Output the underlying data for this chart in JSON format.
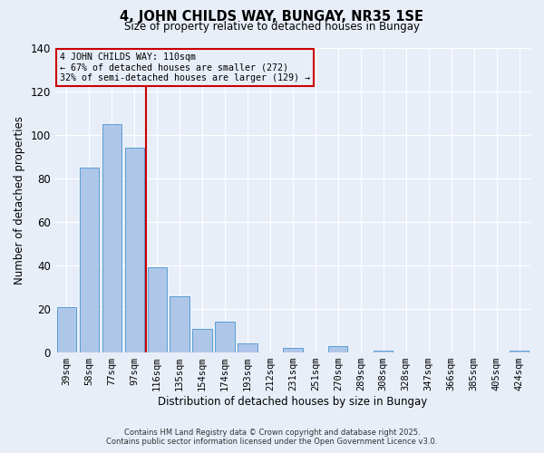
{
  "title": "4, JOHN CHILDS WAY, BUNGAY, NR35 1SE",
  "subtitle": "Size of property relative to detached houses in Bungay",
  "xlabel": "Distribution of detached houses by size in Bungay",
  "ylabel": "Number of detached properties",
  "categories": [
    "39sqm",
    "58sqm",
    "77sqm",
    "97sqm",
    "116sqm",
    "135sqm",
    "154sqm",
    "174sqm",
    "193sqm",
    "212sqm",
    "231sqm",
    "251sqm",
    "270sqm",
    "289sqm",
    "308sqm",
    "328sqm",
    "347sqm",
    "366sqm",
    "385sqm",
    "405sqm",
    "424sqm"
  ],
  "values": [
    21,
    85,
    105,
    94,
    39,
    26,
    11,
    14,
    4,
    0,
    2,
    0,
    3,
    0,
    1,
    0,
    0,
    0,
    0,
    0,
    1
  ],
  "bar_color": "#aec6e8",
  "bar_edge_color": "#5a9fd4",
  "vline_x_pos": 3.5,
  "vline_color": "#cc0000",
  "annotation_line1": "4 JOHN CHILDS WAY: 110sqm",
  "annotation_line2": "← 67% of detached houses are smaller (272)",
  "annotation_line3": "32% of semi-detached houses are larger (129) →",
  "annotation_box_color": "#cc0000",
  "ylim": [
    0,
    140
  ],
  "yticks": [
    0,
    20,
    40,
    60,
    80,
    100,
    120,
    140
  ],
  "footer1": "Contains HM Land Registry data © Crown copyright and database right 2025.",
  "footer2": "Contains public sector information licensed under the Open Government Licence v3.0.",
  "bg_color": "#e8eef8",
  "grid_color": "#ffffff",
  "figsize": [
    6.0,
    5.0
  ],
  "dpi": 100
}
